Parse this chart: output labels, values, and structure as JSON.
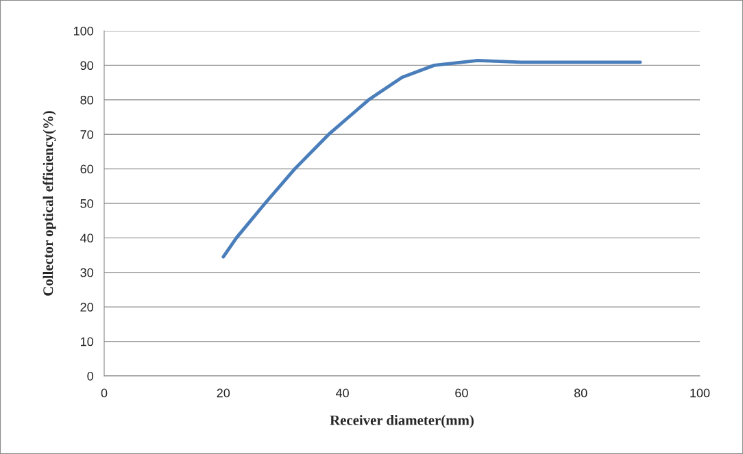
{
  "chart_data": {
    "type": "line",
    "xlabel": "Receiver diameter(mm)",
    "ylabel": "Collector optical efficiency(%)",
    "xlim": [
      0,
      100
    ],
    "xticks": [
      0,
      20,
      40,
      60,
      80,
      100
    ],
    "ylim": [
      0,
      100
    ],
    "yticks": [
      0,
      10,
      20,
      30,
      40,
      50,
      60,
      70,
      80,
      90,
      100
    ],
    "grid": "y",
    "marker": "none",
    "line_style": "solid",
    "series": [
      {
        "color": "#4a7ebb",
        "x": [
          20,
          22.2,
          27,
          32,
          37.7,
          44.4,
          50,
          55.4,
          62.7,
          70,
          80,
          90
        ],
        "values": [
          34.5,
          40,
          50,
          60,
          70,
          80,
          86.5,
          90,
          91.4,
          90.9,
          90.9,
          90.9
        ]
      }
    ]
  }
}
